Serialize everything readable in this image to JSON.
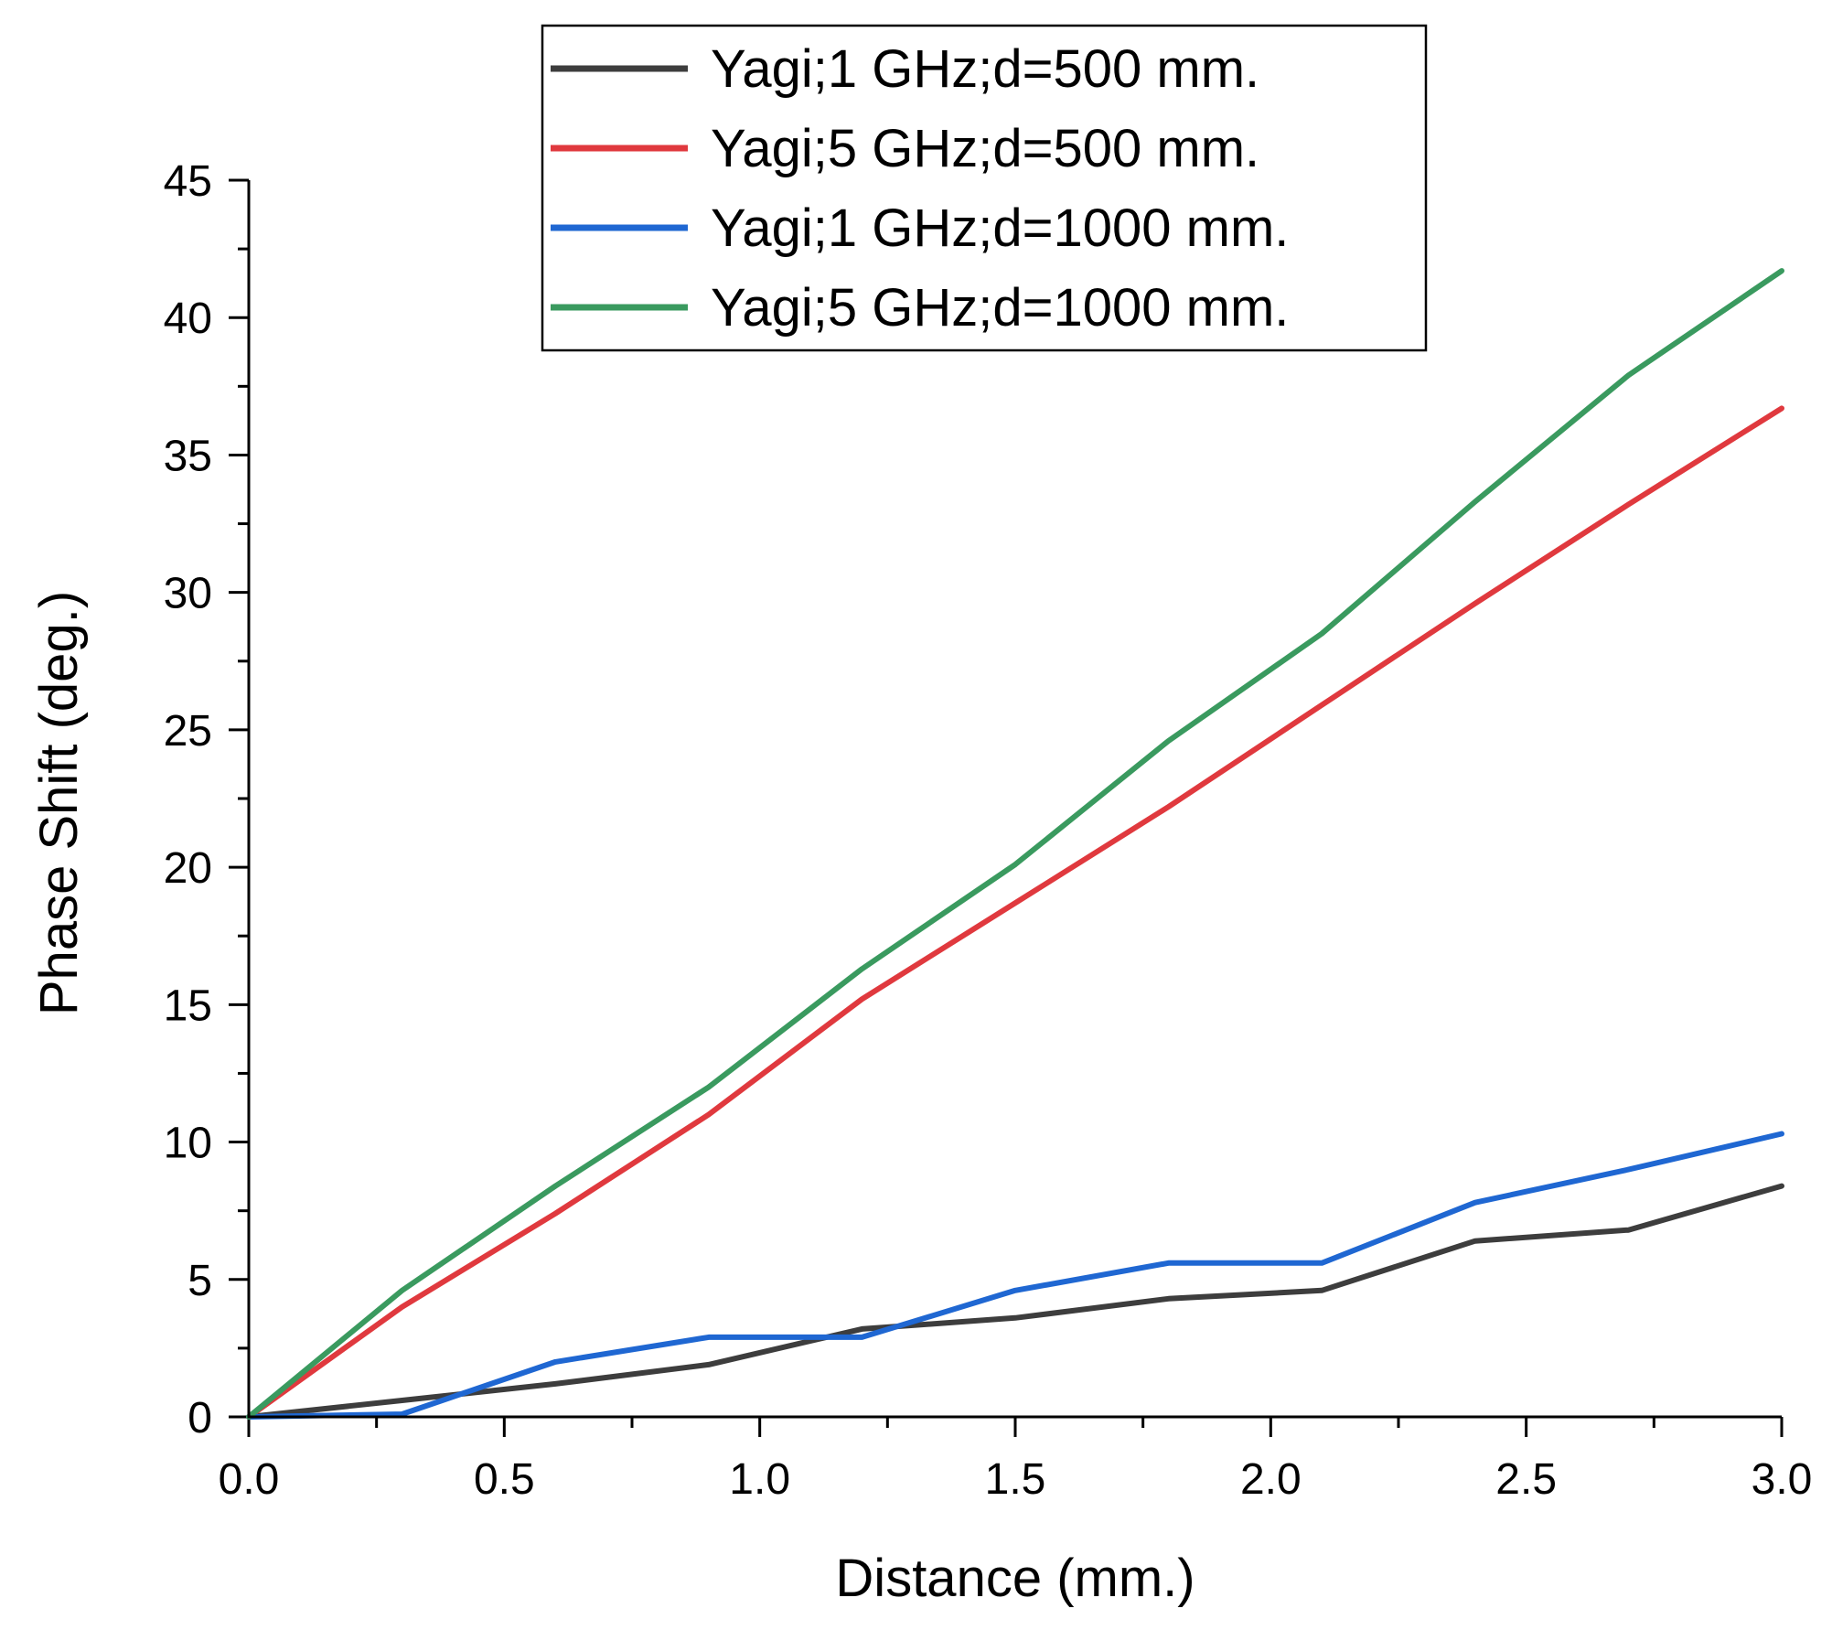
{
  "chart_data": {
    "type": "line",
    "xlabel": "Distance (mm.)",
    "ylabel": "Phase Shift (deg.)",
    "xlim": [
      0,
      3.0
    ],
    "ylim": [
      0,
      45
    ],
    "x_ticks": [
      "0.0",
      "0.5",
      "1.0",
      "1.5",
      "2.0",
      "2.5",
      "3.0"
    ],
    "y_ticks": [
      "0",
      "5",
      "10",
      "15",
      "20",
      "25",
      "30",
      "35",
      "40",
      "45"
    ],
    "legend_position": "top-center",
    "x": [
      0,
      0.3,
      0.6,
      0.9,
      1.2,
      1.5,
      1.8,
      2.1,
      2.4,
      2.7,
      3.0
    ],
    "series": [
      {
        "name": "Yagi;1 GHz;d=500 mm.",
        "color": "#3d3d3d",
        "values": [
          0,
          0.6,
          1.2,
          1.9,
          3.2,
          3.6,
          4.3,
          4.6,
          6.4,
          6.8,
          8.4
        ]
      },
      {
        "name": "Yagi;5 GHz;d=500 mm.",
        "color": "#e0393e",
        "values": [
          0,
          4.0,
          7.4,
          11.0,
          15.2,
          18.7,
          22.2,
          25.9,
          29.6,
          33.2,
          36.7
        ]
      },
      {
        "name": "Yagi;1 GHz;d=1000 mm.",
        "color": "#1f67d2",
        "values": [
          0,
          0.1,
          2.0,
          2.9,
          2.9,
          4.6,
          5.6,
          5.6,
          7.8,
          9.0,
          10.3
        ]
      },
      {
        "name": "Yagi;5 GHz;d=1000 mm.",
        "color": "#3a9a5f",
        "values": [
          0,
          4.6,
          8.4,
          12.0,
          16.3,
          20.1,
          24.6,
          28.5,
          33.3,
          37.9,
          41.7
        ]
      }
    ]
  }
}
